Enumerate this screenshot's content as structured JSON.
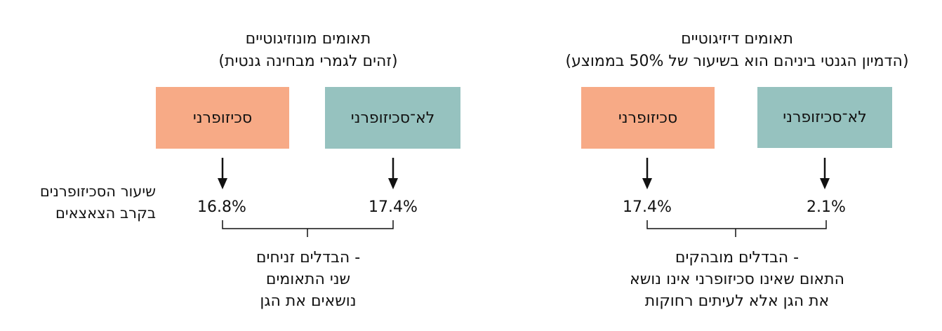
{
  "side_label": {
    "line1": "שיעור הסכיזופרנים",
    "line2": "בקרב הצאצאים"
  },
  "mono": {
    "title": "תאומים מונוזיגוטיים",
    "subtitle": "(זהים לגמרי מבחינה גנטית)",
    "box_schizo": "סכיזופרני",
    "box_non": "לא־סכיזופרני",
    "value_schizo": "16.8%",
    "value_non": "17.4%",
    "note_line1": "הבדלים זניחים -",
    "note_line2": "שני התאומים",
    "note_line3": "נושאים את הגן"
  },
  "di": {
    "title": "תאומים דיזיגוטיים",
    "subtitle": "(הדמיון הגנטי ביניהם הוא בשיעור של 50% בממוצע)",
    "box_schizo": "סכיזופרני",
    "box_non": "לא־סכיזופרני",
    "value_schizo": "17.4%",
    "value_non": "2.1%",
    "note_line1": "הבדלים מובהקים -",
    "note_line2": "התאום שאינו סכיזופרני אינו נושא",
    "note_line3": "את הגן אלא לעיתים רחוקות"
  },
  "colors": {
    "schizo_box": "#f7aa86",
    "non_schizo_box": "#96c2bf"
  }
}
